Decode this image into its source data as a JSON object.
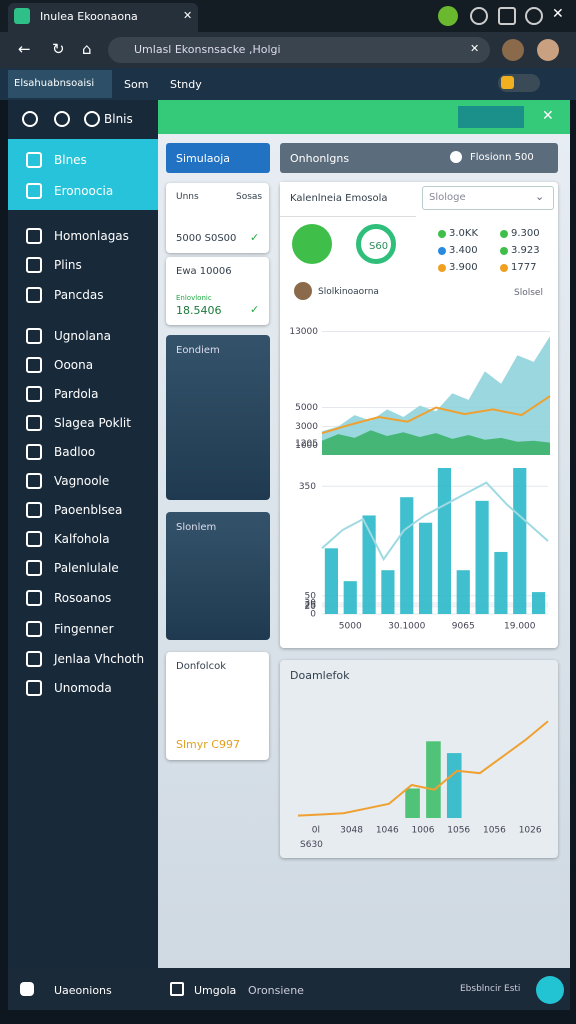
{
  "browser": {
    "tab_title": "Inulea Ekoonaona",
    "url": "Umlasl Ekonsnsacke ,Holgi"
  },
  "app_tabs": [
    "Elsahuabnsoaisi",
    "Som",
    "Stndy"
  ],
  "sidebar": {
    "header": "Blnis",
    "active": [
      "Blnes",
      "Eronoocia"
    ],
    "items": [
      "Homonlagas",
      "Plins",
      "Pancdas",
      "Ugnolana",
      "Ooona",
      "Pardola",
      "Slagea Poklit",
      "Badloo",
      "Vagnoole",
      "Paoenblsea",
      "Kalfohola",
      "Palenlulale",
      "Rosoanos",
      "Fingenner",
      "Jenlaa Vhchoth",
      "Unomoda"
    ]
  },
  "toolbar": {
    "button": "Simulaoja",
    "search": "Onhonlgns",
    "search_right": "Flosionn 500"
  },
  "cards": [
    {
      "title": "Unns",
      "right": "Sosas",
      "value": "5000 S0S00"
    },
    {
      "title": "Ewa 10006",
      "sub": "Enlovlonic",
      "value": "18.5406"
    },
    {
      "title": "Eondiem"
    },
    {
      "title": "Slonlem"
    },
    {
      "title": "Donfolcok",
      "value": "Slmyr C997"
    }
  ],
  "panel": {
    "title": "Kalenlneia Emosola",
    "select": "Slologe",
    "gauge": "S60",
    "stats": [
      "3.0KK",
      "9.300",
      "3.400",
      "3.923",
      "3.900",
      "1777"
    ],
    "user": "Slolkinoaorna",
    "user_right": "Slolsel"
  },
  "lower_panel": {
    "title": "Doamlefok",
    "footer": "S630"
  },
  "charts": [
    {
      "type": "area",
      "ylim": [
        0,
        14000
      ],
      "yticks": [
        13000,
        5000,
        3000,
        1205,
        1000
      ],
      "series": [
        {
          "color": "#8fd3dc",
          "values": [
            2500,
            3000,
            4200,
            3600,
            4800,
            4000,
            5200,
            4600,
            6500,
            5800,
            8800,
            7500,
            10500,
            9800,
            12500
          ]
        },
        {
          "color": "#3db36a",
          "values": [
            1500,
            2200,
            1800,
            2600,
            2000,
            2400,
            1900,
            2300,
            1700,
            2100,
            1600,
            1800,
            1400,
            1500,
            1300
          ]
        },
        {
          "type": "line",
          "color": "#f0a030",
          "values": [
            2300,
            3200,
            4000,
            3500,
            5000,
            4300,
            4800,
            4200,
            6200
          ]
        }
      ]
    },
    {
      "type": "bar",
      "ylim": [
        0,
        400
      ],
      "yticks": [
        350,
        50,
        30,
        25,
        20,
        0
      ],
      "xlabels": [
        "5000",
        "30.1000",
        "9065",
        "19.000"
      ],
      "series": [
        {
          "color": "#2bb8c9",
          "values": [
            180,
            90,
            270,
            120,
            320,
            250,
            400,
            120,
            310,
            170,
            400,
            60
          ]
        },
        {
          "type": "line",
          "color": "#9fd9e2",
          "values": [
            180,
            230,
            260,
            150,
            230,
            270,
            300,
            330,
            360,
            300,
            250,
            200
          ]
        }
      ]
    },
    {
      "type": "bar",
      "ylim": [
        0,
        100
      ],
      "xlabels": [
        "0l",
        "3048",
        "1046",
        "1006",
        "1056",
        "1056",
        "1026"
      ],
      "series": [
        {
          "color": "#3fbf6a",
          "values": [
            0,
            0,
            0,
            0,
            0,
            25,
            65,
            0,
            0,
            0,
            0,
            0
          ]
        },
        {
          "color": "#2bb8c9",
          "values": [
            0,
            0,
            0,
            0,
            0,
            0,
            0,
            55,
            0,
            0,
            0,
            0
          ]
        },
        {
          "type": "line",
          "color": "#f0a030",
          "values": [
            2,
            3,
            4,
            8,
            12,
            28,
            24,
            40,
            38,
            52,
            66,
            82
          ]
        }
      ]
    }
  ],
  "bottom": {
    "left": "Uaeonions",
    "center": "Umgola",
    "center2": "Oronsiene",
    "right": "Ebsblncir Esti"
  }
}
